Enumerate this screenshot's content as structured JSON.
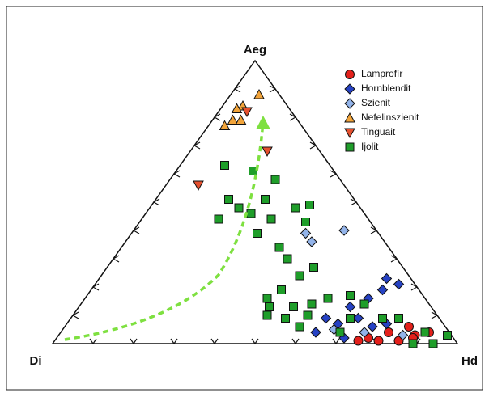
{
  "chart_data": {
    "type": "ternary",
    "axes": [
      "Aeg",
      "Di",
      "Hd"
    ],
    "series": [
      {
        "name": "Lamprofír",
        "color": "#e3201b",
        "marker": "circle",
        "values": [
          [
            4,
            5,
            91
          ],
          [
            3,
            9,
            88
          ],
          [
            6,
            9,
            85
          ],
          [
            1,
            14,
            85
          ],
          [
            4,
            15,
            81
          ],
          [
            1,
            19,
            80
          ],
          [
            2,
            21,
            77
          ],
          [
            1,
            24,
            75
          ],
          [
            2,
            10,
            88
          ]
        ]
      },
      {
        "name": "Hornblendit",
        "color": "#2642c4",
        "marker": "diamond",
        "values": [
          [
            21,
            4,
            75
          ],
          [
            23,
            6,
            71
          ],
          [
            19,
            9,
            72
          ],
          [
            16,
            14,
            70
          ],
          [
            13,
            20,
            67
          ],
          [
            9,
            20,
            71
          ],
          [
            7,
            26,
            67
          ],
          [
            4,
            33,
            63
          ],
          [
            6,
            18,
            76
          ],
          [
            7,
            14,
            79
          ],
          [
            2,
            27,
            71
          ],
          [
            9,
            28,
            63
          ]
        ]
      },
      {
        "name": "Szienit",
        "color": "#93b4ea",
        "marker": "diamond",
        "values": [
          [
            40,
            8,
            52
          ],
          [
            36,
            18,
            46
          ],
          [
            39,
            18,
            43
          ],
          [
            4,
            21,
            75
          ],
          [
            5,
            28,
            67
          ],
          [
            3,
            12,
            85
          ]
        ]
      },
      {
        "name": "Nefelinszienit",
        "color": "#f2a43a",
        "marker": "triangle-up",
        "values": [
          [
            88,
            5,
            7
          ],
          [
            84,
            11,
            5
          ],
          [
            83,
            13,
            4
          ],
          [
            79,
            16,
            5
          ],
          [
            79,
            14,
            7
          ],
          [
            77,
            19,
            4
          ]
        ]
      },
      {
        "name": "Tinguait",
        "color": "#e5502e",
        "marker": "triangle-down",
        "values": [
          [
            82,
            11,
            7
          ],
          [
            68,
            13,
            19
          ],
          [
            56,
            36,
            8
          ]
        ]
      },
      {
        "name": "Ijolit",
        "color": "#1f9e2a",
        "marker": "square",
        "values": [
          [
            3,
            1,
            96
          ],
          [
            0,
            6,
            94
          ],
          [
            0,
            11,
            89
          ],
          [
            17,
            18,
            65
          ],
          [
            16,
            24,
            60
          ],
          [
            14,
            29,
            57
          ],
          [
            13,
            34,
            53
          ],
          [
            13,
            40,
            47
          ],
          [
            16,
            39,
            45
          ],
          [
            19,
            34,
            47
          ],
          [
            24,
            27,
            49
          ],
          [
            27,
            22,
            51
          ],
          [
            49,
            12,
            39
          ],
          [
            48,
            16,
            36
          ],
          [
            43,
            16,
            41
          ],
          [
            58,
            16,
            26
          ],
          [
            51,
            22,
            27
          ],
          [
            44,
            24,
            32
          ],
          [
            39,
            30,
            31
          ],
          [
            46,
            28,
            26
          ],
          [
            48,
            30,
            22
          ],
          [
            51,
            31,
            18
          ],
          [
            44,
            37,
            19
          ],
          [
            63,
            26,
            11
          ],
          [
            61,
            20,
            19
          ],
          [
            34,
            27,
            39
          ],
          [
            30,
            27,
            43
          ],
          [
            9,
            22,
            69
          ],
          [
            9,
            14,
            77
          ],
          [
            4,
            6,
            90
          ],
          [
            9,
            10,
            81
          ],
          [
            6,
            36,
            58
          ],
          [
            9,
            38,
            53
          ],
          [
            10,
            42,
            48
          ],
          [
            10,
            32,
            58
          ],
          [
            4,
            27,
            69
          ],
          [
            14,
            16,
            70
          ]
        ]
      }
    ]
  }
}
